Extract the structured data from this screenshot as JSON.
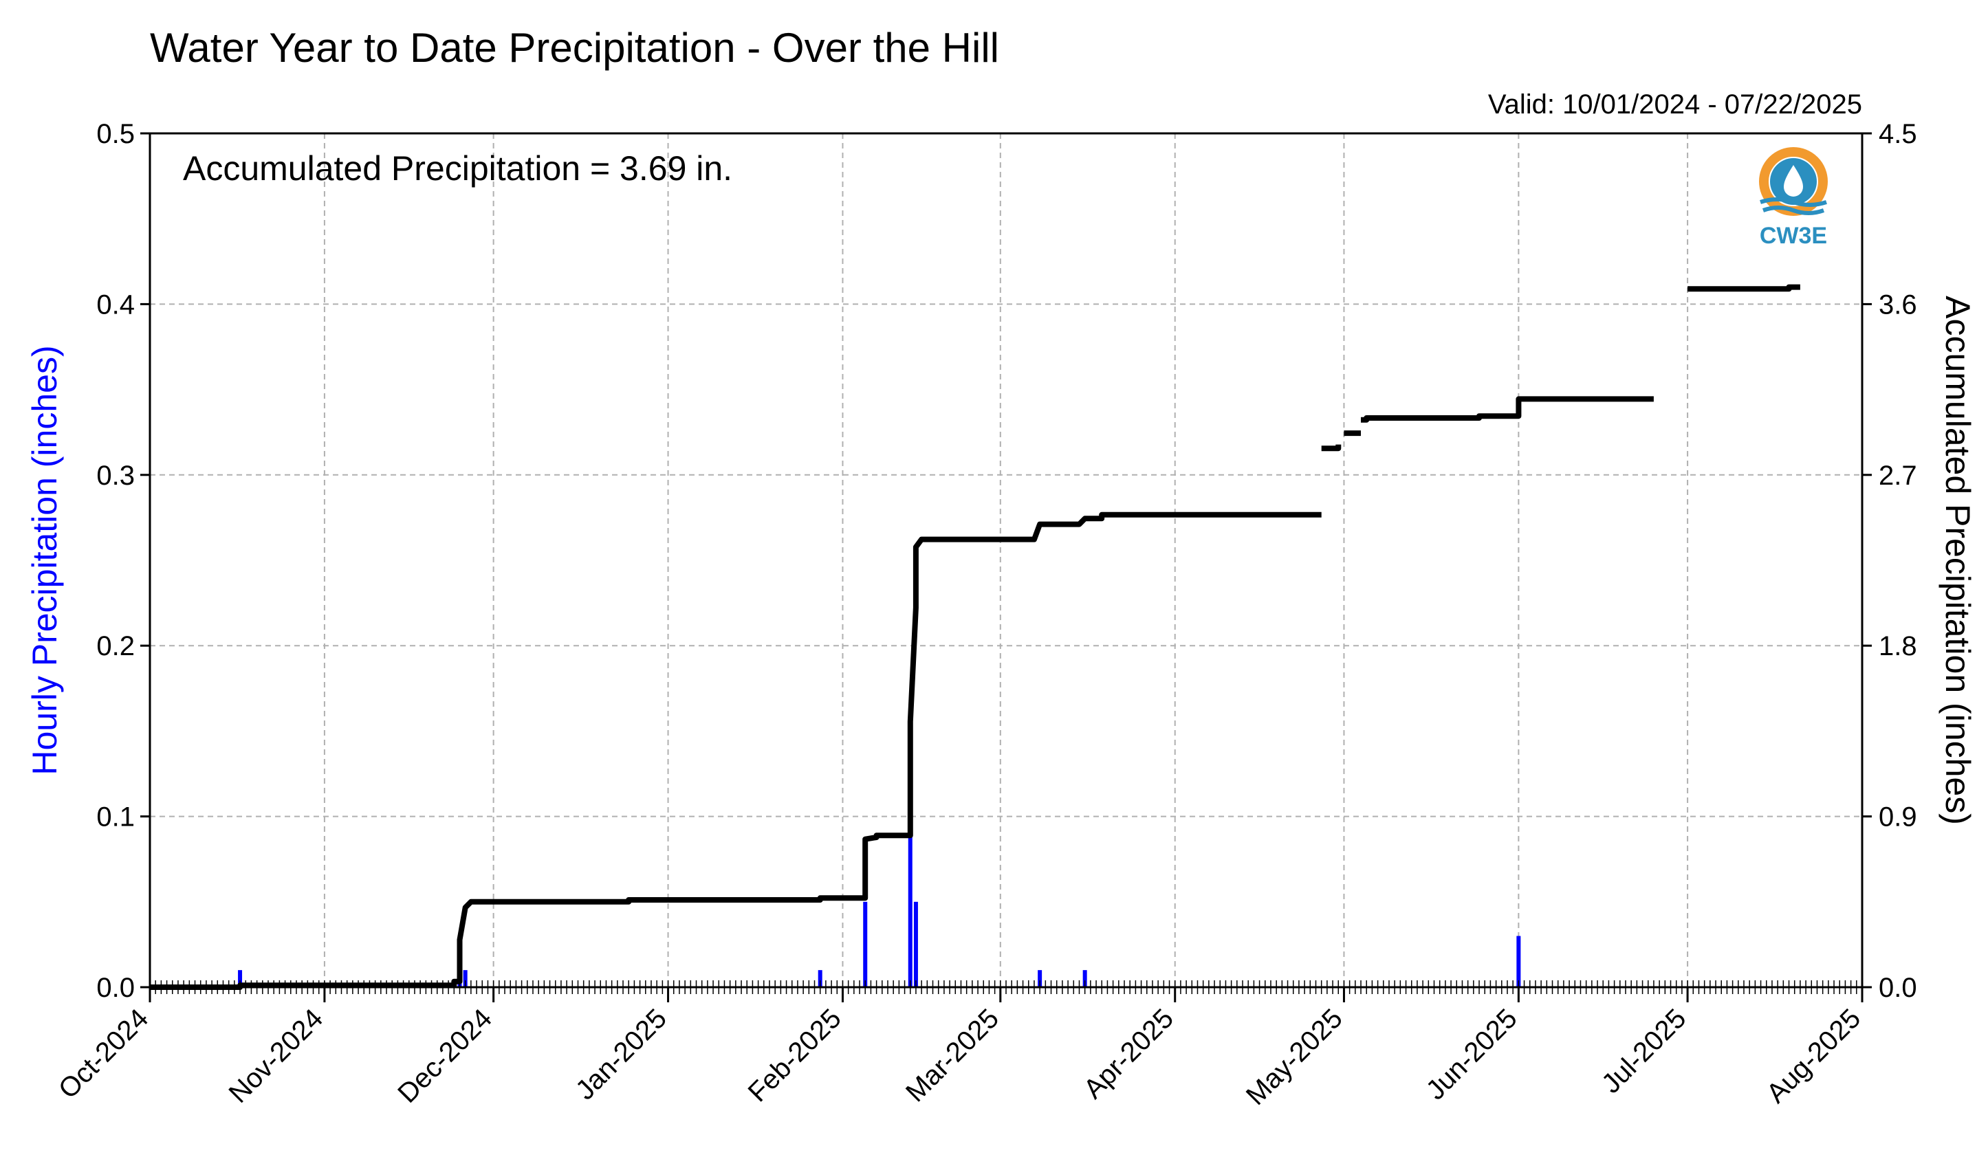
{
  "chart_data": {
    "type": "line",
    "title": "Water Year to Date Precipitation - Over the Hill",
    "subtitle": "Valid: 10/01/2024 - 07/22/2025",
    "annotation": "Accumulated Precipitation = 3.69 in.",
    "ylabel_left": "Hourly Precipitation (inches)",
    "ylabel_right": "Accumulated Precipitation (inches)",
    "xlim": [
      "2024-10-01",
      "2025-08-01"
    ],
    "ylim_left": [
      0,
      0.5
    ],
    "ylim_right": [
      0,
      4.5
    ],
    "grid": true,
    "x_ticks": [
      {
        "date": "2024-10-01",
        "label": "Oct-2024"
      },
      {
        "date": "2024-11-01",
        "label": "Nov-2024"
      },
      {
        "date": "2024-12-01",
        "label": "Dec-2024"
      },
      {
        "date": "2025-01-01",
        "label": "Jan-2025"
      },
      {
        "date": "2025-02-01",
        "label": "Feb-2025"
      },
      {
        "date": "2025-03-01",
        "label": "Mar-2025"
      },
      {
        "date": "2025-04-01",
        "label": "Apr-2025"
      },
      {
        "date": "2025-05-01",
        "label": "May-2025"
      },
      {
        "date": "2025-06-01",
        "label": "Jun-2025"
      },
      {
        "date": "2025-07-01",
        "label": "Jul-2025"
      },
      {
        "date": "2025-08-01",
        "label": "Aug-2025"
      }
    ],
    "y_ticks_left": [
      "0.0",
      "0.1",
      "0.2",
      "0.3",
      "0.4",
      "0.5"
    ],
    "y_ticks_right": [
      "0.0",
      "0.9",
      "1.8",
      "2.7",
      "3.6",
      "4.5"
    ],
    "series": [
      {
        "axis": "left",
        "style": "bar",
        "color": "#0000ff",
        "points": [
          {
            "x": "2024-10-17",
            "y": 0.01
          },
          {
            "x": "2024-11-25",
            "y": 0.02
          },
          {
            "x": "2024-11-26",
            "y": 0.01
          },
          {
            "x": "2025-01-28",
            "y": 0.01
          },
          {
            "x": "2025-02-05",
            "y": 0.05
          },
          {
            "x": "2025-02-13",
            "y": 0.09
          },
          {
            "x": "2025-02-14",
            "y": 0.05
          },
          {
            "x": "2025-03-08",
            "y": 0.01
          },
          {
            "x": "2025-03-16",
            "y": 0.01
          },
          {
            "x": "2025-06-01",
            "y": 0.03
          }
        ]
      },
      {
        "axis": "right",
        "style": "step",
        "color": "#000000",
        "segments": [
          [
            {
              "x": "2024-10-01",
              "y": 0.0
            },
            {
              "x": "2024-10-17",
              "y": 0.0
            },
            {
              "x": "2024-10-17",
              "y": 0.01
            },
            {
              "x": "2024-11-24",
              "y": 0.01
            },
            {
              "x": "2024-11-24",
              "y": 0.03
            },
            {
              "x": "2024-11-25",
              "y": 0.03
            },
            {
              "x": "2024-11-25",
              "y": 0.25
            },
            {
              "x": "2024-11-26",
              "y": 0.42
            },
            {
              "x": "2024-11-27",
              "y": 0.45
            },
            {
              "x": "2024-12-25",
              "y": 0.45
            },
            {
              "x": "2024-12-25",
              "y": 0.46
            },
            {
              "x": "2025-01-28",
              "y": 0.46
            },
            {
              "x": "2025-01-28",
              "y": 0.47
            },
            {
              "x": "2025-02-05",
              "y": 0.47
            },
            {
              "x": "2025-02-05",
              "y": 0.78
            },
            {
              "x": "2025-02-07",
              "y": 0.79
            },
            {
              "x": "2025-02-07",
              "y": 0.8
            },
            {
              "x": "2025-02-13",
              "y": 0.8
            },
            {
              "x": "2025-02-13",
              "y": 1.4
            },
            {
              "x": "2025-02-14",
              "y": 2.0
            },
            {
              "x": "2025-02-14",
              "y": 2.32
            },
            {
              "x": "2025-02-15",
              "y": 2.36
            },
            {
              "x": "2025-03-07",
              "y": 2.36
            },
            {
              "x": "2025-03-08",
              "y": 2.44
            },
            {
              "x": "2025-03-15",
              "y": 2.44
            },
            {
              "x": "2025-03-16",
              "y": 2.47
            },
            {
              "x": "2025-03-19",
              "y": 2.47
            },
            {
              "x": "2025-03-19",
              "y": 2.49
            },
            {
              "x": "2025-04-27",
              "y": 2.49
            }
          ],
          [
            {
              "x": "2025-04-27",
              "y": 2.84
            },
            {
              "x": "2025-04-30",
              "y": 2.84
            },
            {
              "x": "2025-04-30",
              "y": 2.86
            }
          ],
          [
            {
              "x": "2025-05-01",
              "y": 2.92
            },
            {
              "x": "2025-05-04",
              "y": 2.92
            }
          ],
          [
            {
              "x": "2025-05-04",
              "y": 2.99
            },
            {
              "x": "2025-05-05",
              "y": 2.99
            },
            {
              "x": "2025-05-05",
              "y": 3.0
            },
            {
              "x": "2025-05-25",
              "y": 3.0
            },
            {
              "x": "2025-05-25",
              "y": 3.01
            },
            {
              "x": "2025-06-01",
              "y": 3.01
            },
            {
              "x": "2025-06-01",
              "y": 3.1
            },
            {
              "x": "2025-06-25",
              "y": 3.1
            }
          ],
          [
            {
              "x": "2025-07-01",
              "y": 3.68
            },
            {
              "x": "2025-07-19",
              "y": 3.68
            },
            {
              "x": "2025-07-19",
              "y": 3.69
            },
            {
              "x": "2025-07-21",
              "y": 3.69
            }
          ]
        ]
      }
    ]
  },
  "logo": {
    "text": "CW3E",
    "colors": {
      "ring": "#f29a2e",
      "wave": "#2b8fc0",
      "text": "#2b8fc0"
    }
  }
}
